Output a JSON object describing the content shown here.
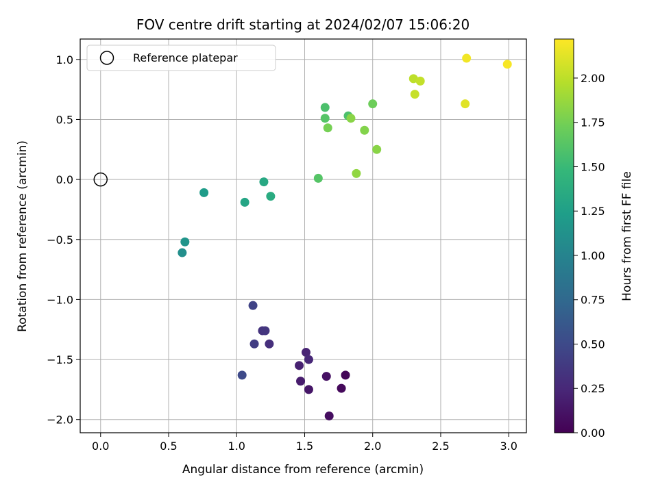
{
  "chart_data": {
    "type": "scatter",
    "title": "FOV centre drift starting at 2024/02/07 15:06:20",
    "xlabel": "Angular distance from reference (arcmin)",
    "ylabel": "Rotation from reference (arcmin)",
    "xlim": [
      -0.15,
      3.13
    ],
    "ylim": [
      -2.11,
      1.17
    ],
    "xticks": [
      0.0,
      0.5,
      1.0,
      1.5,
      2.0,
      2.5,
      3.0
    ],
    "xtick_labels": [
      "0.0",
      "0.5",
      "1.0",
      "1.5",
      "2.0",
      "2.5",
      "3.0"
    ],
    "yticks": [
      -2.0,
      -1.5,
      -1.0,
      -0.5,
      0.0,
      0.5,
      1.0
    ],
    "ytick_labels": [
      "−2.0",
      "−1.5",
      "−1.0",
      "−0.5",
      "0.0",
      "0.5",
      "1.0"
    ],
    "grid": true,
    "legend": {
      "position": "top-left",
      "entries": [
        "Reference platepar"
      ]
    },
    "reference_point": {
      "x": 0.0,
      "y": 0.0,
      "marker": "hollow-circle",
      "color": "#000000"
    },
    "colorbar": {
      "label": "Hours from first FF file",
      "min": 0.0,
      "max": 2.22,
      "ticks": [
        0.0,
        0.25,
        0.5,
        0.75,
        1.0,
        1.25,
        1.5,
        1.75,
        2.0
      ],
      "tick_labels": [
        "0.00",
        "0.25",
        "0.50",
        "0.75",
        "1.00",
        "1.25",
        "1.50",
        "1.75",
        "2.00"
      ],
      "colormap": "viridis",
      "colors": [
        "#440154",
        "#482878",
        "#3e4989",
        "#31688e",
        "#26828e",
        "#1f9e89",
        "#35b779",
        "#6ece58",
        "#b5de2b",
        "#fde725"
      ]
    },
    "points": [
      {
        "x": 1.68,
        "y": -1.97,
        "t": 0.08
      },
      {
        "x": 1.8,
        "y": -1.63,
        "t": 0.03
      },
      {
        "x": 1.77,
        "y": -1.74,
        "t": 0.05
      },
      {
        "x": 1.66,
        "y": -1.64,
        "t": 0.1
      },
      {
        "x": 1.53,
        "y": -1.75,
        "t": 0.13
      },
      {
        "x": 1.47,
        "y": -1.68,
        "t": 0.17
      },
      {
        "x": 1.46,
        "y": -1.55,
        "t": 0.2
      },
      {
        "x": 1.51,
        "y": -1.44,
        "t": 0.22
      },
      {
        "x": 1.53,
        "y": -1.5,
        "t": 0.25
      },
      {
        "x": 1.24,
        "y": -1.37,
        "t": 0.3
      },
      {
        "x": 1.19,
        "y": -1.26,
        "t": 0.33
      },
      {
        "x": 1.21,
        "y": -1.26,
        "t": 0.35
      },
      {
        "x": 1.13,
        "y": -1.37,
        "t": 0.4
      },
      {
        "x": 1.12,
        "y": -1.05,
        "t": 0.45
      },
      {
        "x": 1.04,
        "y": -1.63,
        "t": 0.5
      },
      {
        "x": 0.6,
        "y": -0.61,
        "t": 1.1
      },
      {
        "x": 0.62,
        "y": -0.52,
        "t": 1.15
      },
      {
        "x": 0.76,
        "y": -0.11,
        "t": 1.22
      },
      {
        "x": 1.06,
        "y": -0.19,
        "t": 1.3
      },
      {
        "x": 1.2,
        "y": -0.02,
        "t": 1.33
      },
      {
        "x": 1.25,
        "y": -0.14,
        "t": 1.36
      },
      {
        "x": 1.65,
        "y": 0.6,
        "t": 1.58
      },
      {
        "x": 1.65,
        "y": 0.51,
        "t": 1.62
      },
      {
        "x": 1.82,
        "y": 0.53,
        "t": 1.58
      },
      {
        "x": 1.6,
        "y": 0.01,
        "t": 1.62
      },
      {
        "x": 2.0,
        "y": 0.63,
        "t": 1.72
      },
      {
        "x": 1.67,
        "y": 0.43,
        "t": 1.75
      },
      {
        "x": 1.84,
        "y": 0.51,
        "t": 1.82
      },
      {
        "x": 1.94,
        "y": 0.41,
        "t": 1.8
      },
      {
        "x": 2.03,
        "y": 0.25,
        "t": 1.82
      },
      {
        "x": 1.88,
        "y": 0.05,
        "t": 1.85
      },
      {
        "x": 2.3,
        "y": 0.84,
        "t": 2.0
      },
      {
        "x": 2.35,
        "y": 0.82,
        "t": 2.02
      },
      {
        "x": 2.31,
        "y": 0.71,
        "t": 2.03
      },
      {
        "x": 2.68,
        "y": 0.63,
        "t": 2.12
      },
      {
        "x": 2.69,
        "y": 1.01,
        "t": 2.18
      },
      {
        "x": 2.99,
        "y": 0.96,
        "t": 2.2
      }
    ]
  }
}
